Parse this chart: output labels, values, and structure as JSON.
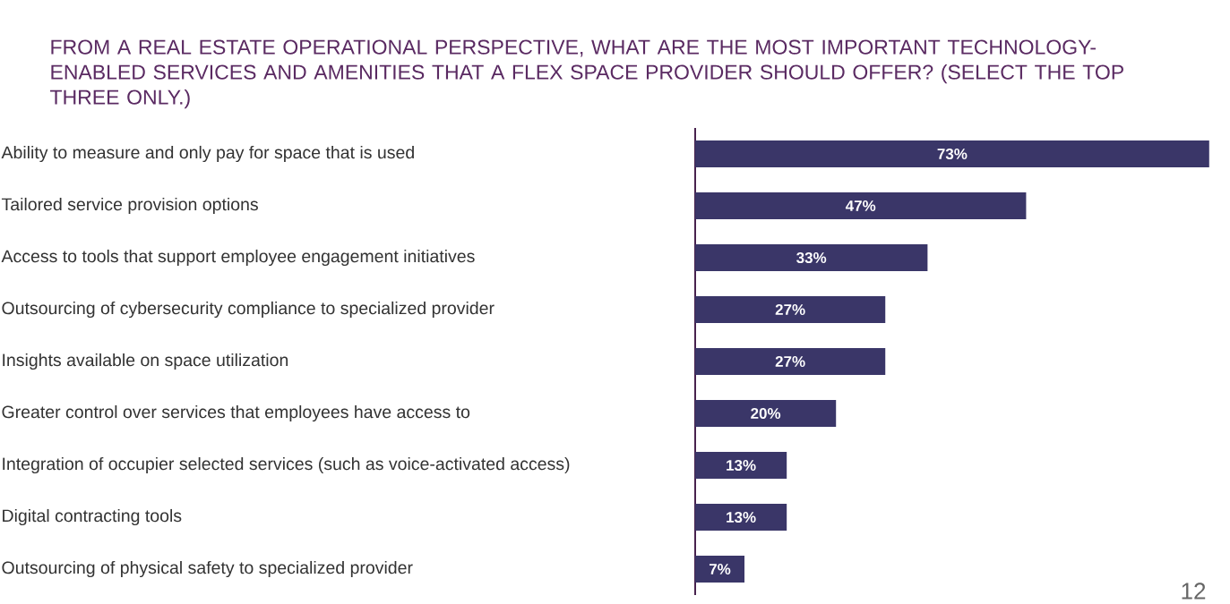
{
  "chart_data": {
    "type": "bar",
    "orientation": "horizontal",
    "title": "FROM A REAL ESTATE OPERATIONAL PERSPECTIVE, WHAT ARE THE MOST IMPORTANT TECHNOLOGY-ENABLED SERVICES AND AMENITIES THAT A FLEX SPACE PROVIDER SHOULD OFFER? (SELECT THE TOP THREE ONLY.)",
    "categories": [
      "Ability to measure and only pay for space that is used",
      "Tailored service provision options",
      "Access to tools that support employee engagement initiatives",
      "Outsourcing of cybersecurity compliance to specialized provider",
      "Insights available on space utilization",
      "Greater control over services that employees have access to",
      "Integration of occupier selected services (such as voice-activated access)",
      "Digital contracting tools",
      "Outsourcing of physical safety to specialized provider"
    ],
    "values": [
      73,
      47,
      33,
      27,
      27,
      20,
      13,
      13,
      7
    ],
    "value_labels": [
      "73%",
      "47%",
      "33%",
      "27%",
      "27%",
      "20%",
      "13%",
      "13%",
      "7%"
    ],
    "color": "#3a3668",
    "annotations": [
      "12"
    ]
  }
}
